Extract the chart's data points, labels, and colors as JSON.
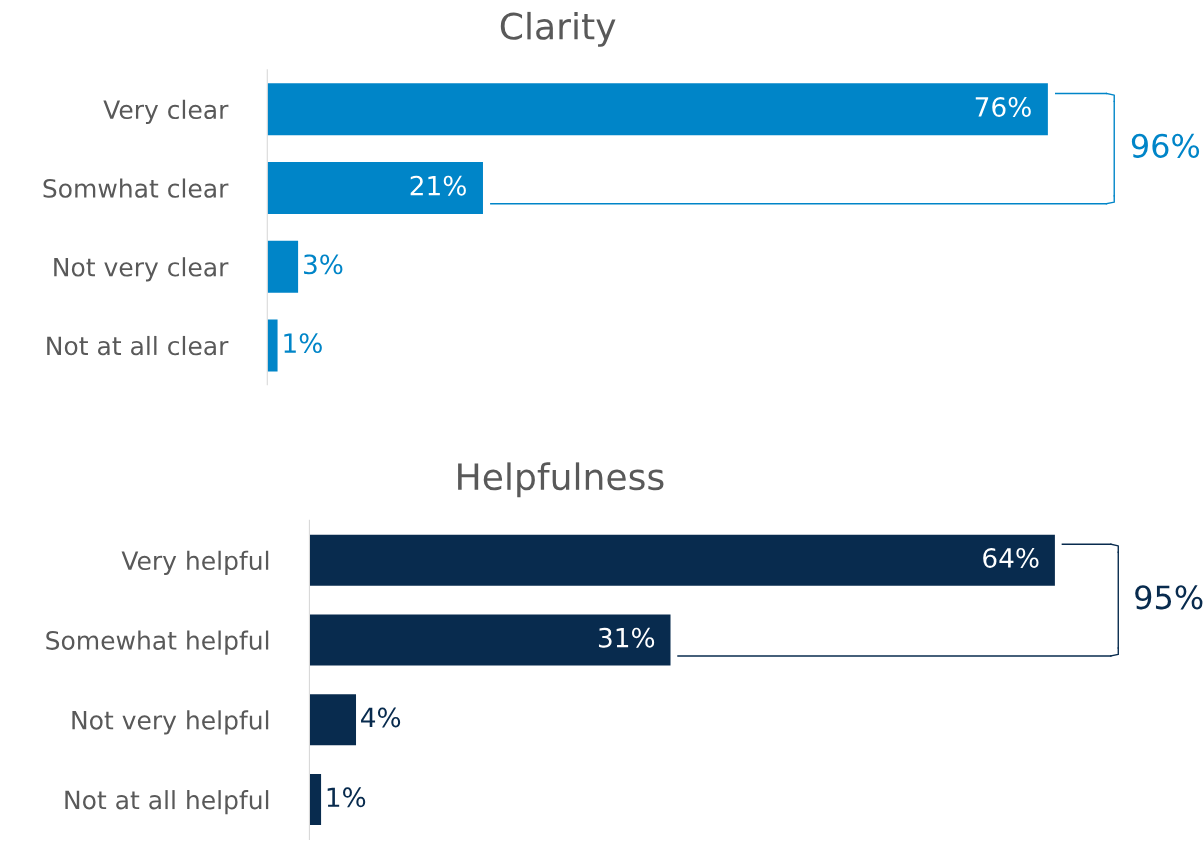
{
  "chart_data": [
    {
      "type": "bar",
      "orientation": "horizontal",
      "title": "Clarity",
      "categories": [
        "Very clear",
        "Somwhat clear",
        "Not very clear",
        "Not at all clear"
      ],
      "values": [
        76,
        21,
        3,
        1
      ],
      "value_labels": [
        "76%",
        "21%",
        "3%",
        "1%"
      ],
      "color": "#0085c8",
      "annotations": [
        "96%"
      ],
      "tick_labels": "y"
    },
    {
      "type": "bar",
      "orientation": "horizontal",
      "title": "Helpfulness",
      "categories": [
        "Very helpful",
        "Somewhat helpful",
        "Not very helpful",
        "Not at all helpful"
      ],
      "values": [
        64,
        31,
        4,
        1
      ],
      "value_labels": [
        "64%",
        "31%",
        "4%",
        "1%"
      ],
      "color": "#082b4e",
      "annotations": [
        "95%"
      ],
      "tick_labels": "y"
    }
  ]
}
